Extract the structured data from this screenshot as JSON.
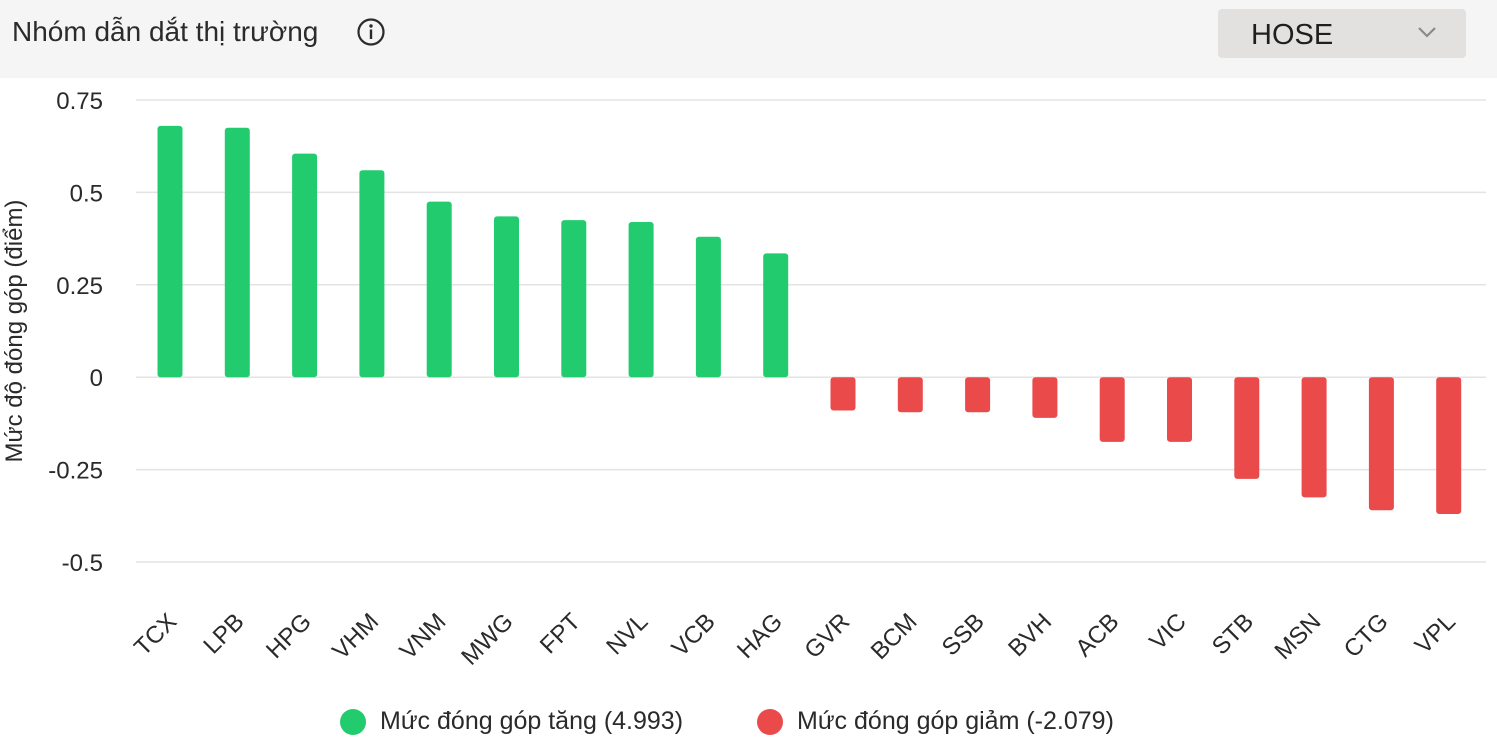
{
  "header": {
    "title": "Nhóm dẫn dắt thị trường",
    "info_icon": "info-icon",
    "exchange_select": {
      "value": "HOSE",
      "icon": "chevron-down-icon"
    }
  },
  "legend": {
    "up_label": "Mức đóng góp tăng (4.993)",
    "down_label": "Mức đóng góp giảm (-2.079)"
  },
  "colors": {
    "up": "#22cc6e",
    "down": "#ea4a4a",
    "grid": "#e3e3e3"
  },
  "chart_data": {
    "type": "bar",
    "title": "",
    "ylabel": "Mức độ đóng góp (điểm)",
    "xlabel": "",
    "ylim": [
      -0.5,
      0.75
    ],
    "yticks": [
      0.75,
      0.5,
      0.25,
      0,
      -0.25,
      -0.5
    ],
    "ytick_labels": [
      "0.75",
      "0.5",
      "0.25",
      "0",
      "-0.25",
      "-0.5"
    ],
    "grid": true,
    "legend_position": "bottom",
    "categories": [
      "TCX",
      "LPB",
      "HPG",
      "VHM",
      "VNM",
      "MWG",
      "FPT",
      "NVL",
      "VCB",
      "HAG",
      "GVR",
      "BCM",
      "SSB",
      "BVH",
      "ACB",
      "VIC",
      "STB",
      "MSN",
      "CTG",
      "VPL"
    ],
    "values": [
      0.68,
      0.675,
      0.605,
      0.56,
      0.475,
      0.435,
      0.425,
      0.42,
      0.38,
      0.335,
      -0.09,
      -0.095,
      -0.095,
      -0.11,
      -0.175,
      -0.175,
      -0.275,
      -0.325,
      -0.36,
      -0.37
    ],
    "series": [
      {
        "name": "Mức đóng góp tăng (4.993)",
        "color": "#22cc6e"
      },
      {
        "name": "Mức đóng góp giảm (-2.079)",
        "color": "#ea4a4a"
      }
    ]
  }
}
